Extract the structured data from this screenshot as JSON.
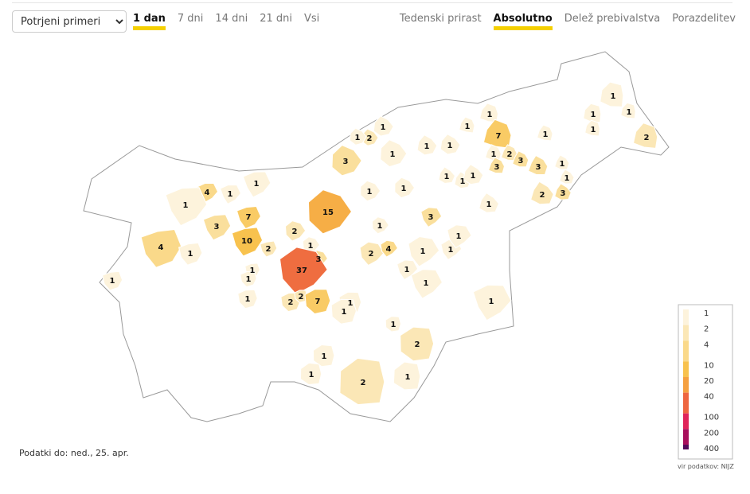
{
  "controls": {
    "select": "Potrjeni primeri",
    "time_tabs": [
      "1 dan",
      "7 dni",
      "14 dni",
      "21 dni",
      "Vsi"
    ],
    "time_active": 0,
    "view_tabs": [
      "Tedenski prirast",
      "Absolutno",
      "Delež prebivalstva",
      "Porazdelitev"
    ],
    "view_active": 1
  },
  "map": {
    "regions": [
      1,
      1,
      1,
      1,
      2,
      1,
      7,
      1,
      1,
      1,
      2,
      3,
      3,
      3,
      1,
      1,
      2,
      3,
      1,
      1,
      1,
      1,
      1,
      1,
      1,
      2,
      1,
      1,
      3,
      1,
      1,
      15,
      1,
      2,
      1,
      3,
      37,
      2,
      4,
      1,
      1,
      1,
      3,
      1,
      1,
      1,
      4,
      1,
      1,
      1,
      3,
      7,
      10,
      2,
      4,
      1,
      1,
      1,
      1,
      1,
      2,
      2,
      7,
      1,
      1,
      1,
      2,
      1,
      1,
      2,
      1
    ]
  },
  "legend": {
    "ticks": [
      1,
      2,
      4,
      10,
      20,
      40,
      100,
      200,
      400
    ],
    "colors": [
      "#fdf3dc",
      "#fbe7b6",
      "#fad98a",
      "#f8c24e",
      "#f5a040",
      "#ee6640",
      "#e0245a",
      "#a80f5c",
      "#520a5a"
    ]
  },
  "footer": {
    "date": "Podatki do: ned., 25. apr.",
    "source": "vir podatkov: NIJZ"
  }
}
